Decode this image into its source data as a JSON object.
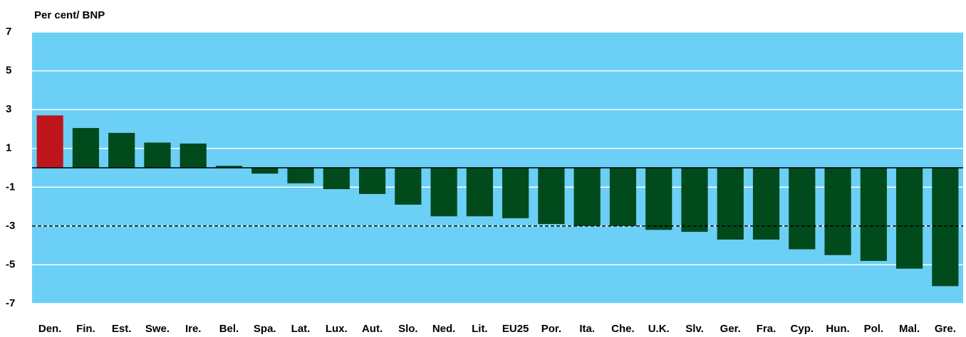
{
  "chart_data": {
    "type": "bar",
    "title": "Per cent/ BNP",
    "categories": [
      "Den.",
      "Fin.",
      "Est.",
      "Swe.",
      "Ire.",
      "Bel.",
      "Spa.",
      "Lat.",
      "Lux.",
      "Aut.",
      "Slo.",
      "Ned.",
      "Lit.",
      "EU25",
      "Por.",
      "Ita.",
      "Che.",
      "U.K.",
      "Slv.",
      "Ger.",
      "Fra.",
      "Cyp.",
      "Hun.",
      "Pol.",
      "Mal.",
      "Gre."
    ],
    "values": [
      2.7,
      2.05,
      1.8,
      1.3,
      1.25,
      0.1,
      -0.3,
      -0.8,
      -1.1,
      -1.35,
      -1.9,
      -2.5,
      -2.5,
      -2.6,
      -2.9,
      -3.0,
      -3.0,
      -3.2,
      -3.3,
      -3.7,
      -3.7,
      -4.2,
      -4.5,
      -4.8,
      -5.2,
      -6.1
    ],
    "colors": [
      "#c0141c",
      "#004a1c",
      "#004a1c",
      "#004a1c",
      "#004a1c",
      "#004a1c",
      "#004a1c",
      "#004a1c",
      "#004a1c",
      "#004a1c",
      "#004a1c",
      "#004a1c",
      "#004a1c",
      "#004a1c",
      "#004a1c",
      "#004a1c",
      "#004a1c",
      "#004a1c",
      "#004a1c",
      "#004a1c",
      "#004a1c",
      "#004a1c",
      "#004a1c",
      "#004a1c",
      "#004a1c",
      "#004a1c"
    ],
    "ylim": [
      -7,
      7
    ],
    "yticks": [
      7,
      5,
      3,
      1,
      -1,
      -3,
      -5,
      -7
    ],
    "grid": true,
    "reference_line": -3,
    "background": "#6ccff6"
  }
}
